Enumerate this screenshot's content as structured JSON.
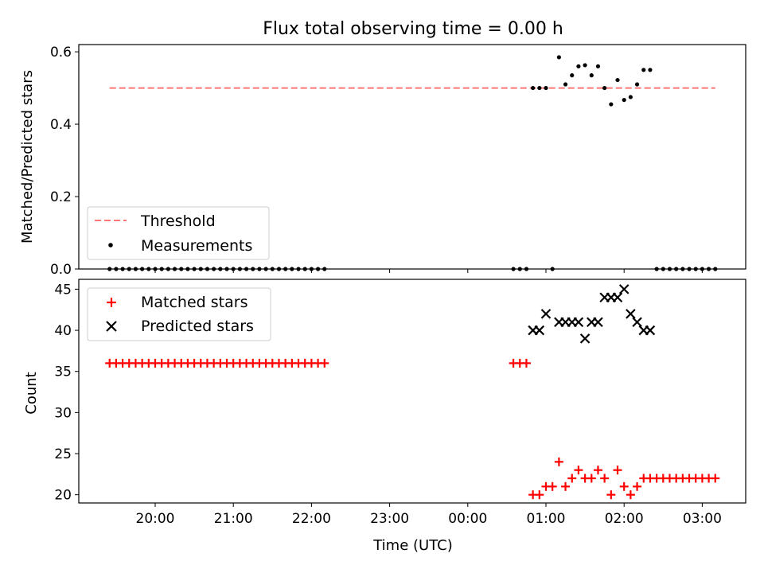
{
  "chart_data": [
    {
      "type": "scatter",
      "title": "Flux total observing time = 0.00 h",
      "xlabel": "",
      "ylabel": "Matched/Predicted stars",
      "ylim": [
        0,
        0.62
      ],
      "yticks": [
        "0.0",
        "0.2",
        "0.4",
        "0.6"
      ],
      "legend": {
        "placement": "lower-left",
        "entries": [
          "Threshold",
          "Measurements"
        ]
      },
      "threshold": {
        "name": "Threshold",
        "value": 0.5,
        "x_range": [
          "19:25",
          "03:10"
        ],
        "color": "#ff7777"
      },
      "series": [
        {
          "name": "Measurements",
          "color": "#000000",
          "x": [
            "19:25",
            "19:30",
            "19:35",
            "19:40",
            "19:45",
            "19:50",
            "19:55",
            "20:00",
            "20:05",
            "20:10",
            "20:15",
            "20:20",
            "20:25",
            "20:30",
            "20:35",
            "20:40",
            "20:45",
            "20:50",
            "20:55",
            "21:00",
            "21:05",
            "21:10",
            "21:15",
            "21:20",
            "21:25",
            "21:30",
            "21:35",
            "21:40",
            "21:45",
            "21:50",
            "21:55",
            "22:00",
            "22:05",
            "22:10",
            "00:35",
            "00:40",
            "00:45",
            "00:50",
            "00:55",
            "01:00",
            "01:05",
            "01:10",
            "01:15",
            "01:20",
            "01:25",
            "01:30",
            "01:35",
            "01:40",
            "01:45",
            "01:50",
            "01:55",
            "02:00",
            "02:05",
            "02:10",
            "02:15",
            "02:20",
            "02:25",
            "02:30",
            "02:35",
            "02:40",
            "02:45",
            "02:50",
            "02:55",
            "03:00",
            "03:05",
            "03:10"
          ],
          "y": [
            0,
            0,
            0,
            0,
            0,
            0,
            0,
            0,
            0,
            0,
            0,
            0,
            0,
            0,
            0,
            0,
            0,
            0,
            0,
            0,
            0,
            0,
            0,
            0,
            0,
            0,
            0,
            0,
            0,
            0,
            0,
            0,
            0,
            0,
            0,
            0,
            0,
            0.5,
            0.5,
            0.5,
            0,
            0.585,
            0.51,
            0.535,
            0.56,
            0.563,
            0.535,
            0.56,
            0.5,
            0.455,
            0.522,
            0.467,
            0.475,
            0.51,
            0.55,
            0.55,
            0,
            0,
            0,
            0,
            0,
            0,
            0,
            0,
            0,
            0
          ]
        }
      ]
    },
    {
      "type": "scatter",
      "title": "",
      "xlabel": "Time (UTC)",
      "ylabel": "Count",
      "ylim": [
        19,
        46.2
      ],
      "yticks": [
        "20",
        "25",
        "30",
        "35",
        "40",
        "45"
      ],
      "xticks": [
        "20:00",
        "21:00",
        "22:00",
        "23:00",
        "00:00",
        "01:00",
        "02:00",
        "03:00"
      ],
      "legend": {
        "placement": "upper-left",
        "entries": [
          "Matched stars",
          "Predicted stars"
        ]
      },
      "series": [
        {
          "name": "Matched stars",
          "marker": "+",
          "color": "#ff0000",
          "x": [
            "19:25",
            "19:30",
            "19:35",
            "19:40",
            "19:45",
            "19:50",
            "19:55",
            "20:00",
            "20:05",
            "20:10",
            "20:15",
            "20:20",
            "20:25",
            "20:30",
            "20:35",
            "20:40",
            "20:45",
            "20:50",
            "20:55",
            "21:00",
            "21:05",
            "21:10",
            "21:15",
            "21:20",
            "21:25",
            "21:30",
            "21:35",
            "21:40",
            "21:45",
            "21:50",
            "21:55",
            "22:00",
            "22:05",
            "22:10",
            "00:35",
            "00:40",
            "00:45",
            "00:50",
            "00:55",
            "01:00",
            "01:05",
            "01:10",
            "01:15",
            "01:20",
            "01:25",
            "01:30",
            "01:35",
            "01:40",
            "01:45",
            "01:50",
            "01:55",
            "02:00",
            "02:05",
            "02:10",
            "02:15",
            "02:20",
            "02:25",
            "02:30",
            "02:35",
            "02:40",
            "02:45",
            "02:50",
            "02:55",
            "03:00",
            "03:05",
            "03:10"
          ],
          "y": [
            36,
            36,
            36,
            36,
            36,
            36,
            36,
            36,
            36,
            36,
            36,
            36,
            36,
            36,
            36,
            36,
            36,
            36,
            36,
            36,
            36,
            36,
            36,
            36,
            36,
            36,
            36,
            36,
            36,
            36,
            36,
            36,
            36,
            36,
            36,
            36,
            36,
            20,
            20,
            21,
            21,
            24,
            21,
            22,
            23,
            22,
            22,
            23,
            22,
            20,
            23,
            21,
            20,
            21,
            22,
            22,
            22,
            22,
            22,
            22,
            22,
            22,
            22,
            22,
            22,
            22
          ]
        },
        {
          "name": "Predicted stars",
          "marker": "x",
          "color": "#000000",
          "x": [
            "00:50",
            "00:55",
            "01:00",
            "01:10",
            "01:15",
            "01:20",
            "01:25",
            "01:30",
            "01:35",
            "01:40",
            "01:45",
            "01:50",
            "01:55",
            "02:00",
            "02:05",
            "02:10",
            "02:15",
            "02:20"
          ],
          "y": [
            40,
            40,
            42,
            41,
            41,
            41,
            41,
            39,
            41,
            41,
            44,
            44,
            44,
            45,
            42,
            41,
            40,
            40
          ]
        }
      ]
    }
  ]
}
